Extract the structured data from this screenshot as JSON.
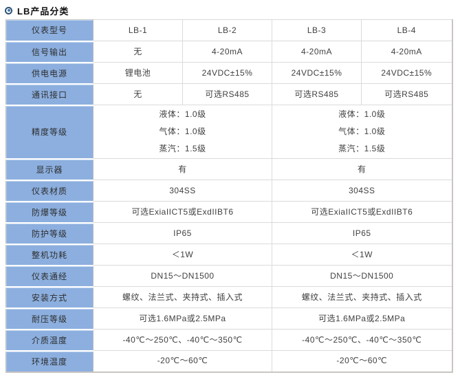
{
  "page": {
    "title": "LB产品分类",
    "title_icon": "bullet-circle-icon"
  },
  "colors": {
    "header_cell_blue": "#8cafdf",
    "header_cell_highlight": "#b9d0ee",
    "cell_border_gray": "#dadada",
    "outer_border_gray": "#c9c5c1",
    "icon_ring_navy": "#2f5276",
    "icon_dot_blue": "#4579ad",
    "title_text": "#111111"
  },
  "table": {
    "rows": [
      {
        "label": "仪表型号",
        "cells": [
          {
            "text": "LB-1",
            "span": 1
          },
          {
            "text": "LB-2",
            "span": 1
          },
          {
            "text": "LB-3",
            "span": 1
          },
          {
            "text": "LB-4",
            "span": 1
          }
        ]
      },
      {
        "label": "信号输出",
        "cells": [
          {
            "text": "无",
            "span": 1
          },
          {
            "text": "4-20mA",
            "span": 1
          },
          {
            "text": "4-20mA",
            "span": 1
          },
          {
            "text": "4-20mA",
            "span": 1
          }
        ]
      },
      {
        "label": "供电电源",
        "cells": [
          {
            "text": "锂电池",
            "span": 1
          },
          {
            "text": "24VDC±15%",
            "span": 1
          },
          {
            "text": "24VDC±15%",
            "span": 1
          },
          {
            "text": "24VDC±15%",
            "span": 1
          }
        ]
      },
      {
        "label": "通讯接口",
        "cells": [
          {
            "text": "无",
            "span": 1
          },
          {
            "text": "可选RS485",
            "span": 1
          },
          {
            "text": "可选RS485",
            "span": 1
          },
          {
            "text": "可选RS485",
            "span": 1
          }
        ]
      },
      {
        "label": "精度等级",
        "cells": [
          {
            "text": "液体：1.0级\n气体：1.0级\n蒸汽：1.5级",
            "span": 2
          },
          {
            "text": "液体：1.0级\n气体：1.0级\n蒸汽：1.5级",
            "span": 2
          }
        ]
      },
      {
        "label": "显示器",
        "cells": [
          {
            "text": "有",
            "span": 2
          },
          {
            "text": "有",
            "span": 2
          }
        ]
      },
      {
        "label": "仪表材质",
        "cells": [
          {
            "text": "304SS",
            "span": 2
          },
          {
            "text": "304SS",
            "span": 2
          }
        ]
      },
      {
        "label": "防爆等级",
        "cells": [
          {
            "text": "可选ExiaIICT5或ExdIIBT6",
            "span": 2
          },
          {
            "text": "可选ExiaIICT5或ExdIIBT6",
            "span": 2
          }
        ]
      },
      {
        "label": "防护等级",
        "cells": [
          {
            "text": "IP65",
            "span": 2
          },
          {
            "text": "IP65",
            "span": 2
          }
        ]
      },
      {
        "label": "整机功耗",
        "cells": [
          {
            "text": "＜1W",
            "span": 2
          },
          {
            "text": "＜1W",
            "span": 2
          }
        ]
      },
      {
        "label": "仪表通经",
        "cells": [
          {
            "text": "DN15～DN1500",
            "span": 2
          },
          {
            "text": "DN15～DN1500",
            "span": 2
          }
        ]
      },
      {
        "label": "安装方式",
        "cells": [
          {
            "text": "螺纹、法兰式、夹持式、插入式",
            "span": 2
          },
          {
            "text": "螺纹、法兰式、夹持式、插入式",
            "span": 2
          }
        ]
      },
      {
        "label": "耐压等级",
        "cells": [
          {
            "text": "可选1.6MPa或2.5MPa",
            "span": 2
          },
          {
            "text": "可选1.6MPa或2.5MPa",
            "span": 2
          }
        ]
      },
      {
        "label": "介质温度",
        "cells": [
          {
            "text": "-40℃～250℃、-40℃～350℃",
            "span": 2
          },
          {
            "text": "-40℃～250℃、-40℃～350℃",
            "span": 2
          }
        ]
      },
      {
        "label": "环境温度",
        "cells": [
          {
            "text": "-20℃～60℃",
            "span": 2
          },
          {
            "text": "-20℃～60℃",
            "span": 2
          }
        ]
      }
    ]
  }
}
